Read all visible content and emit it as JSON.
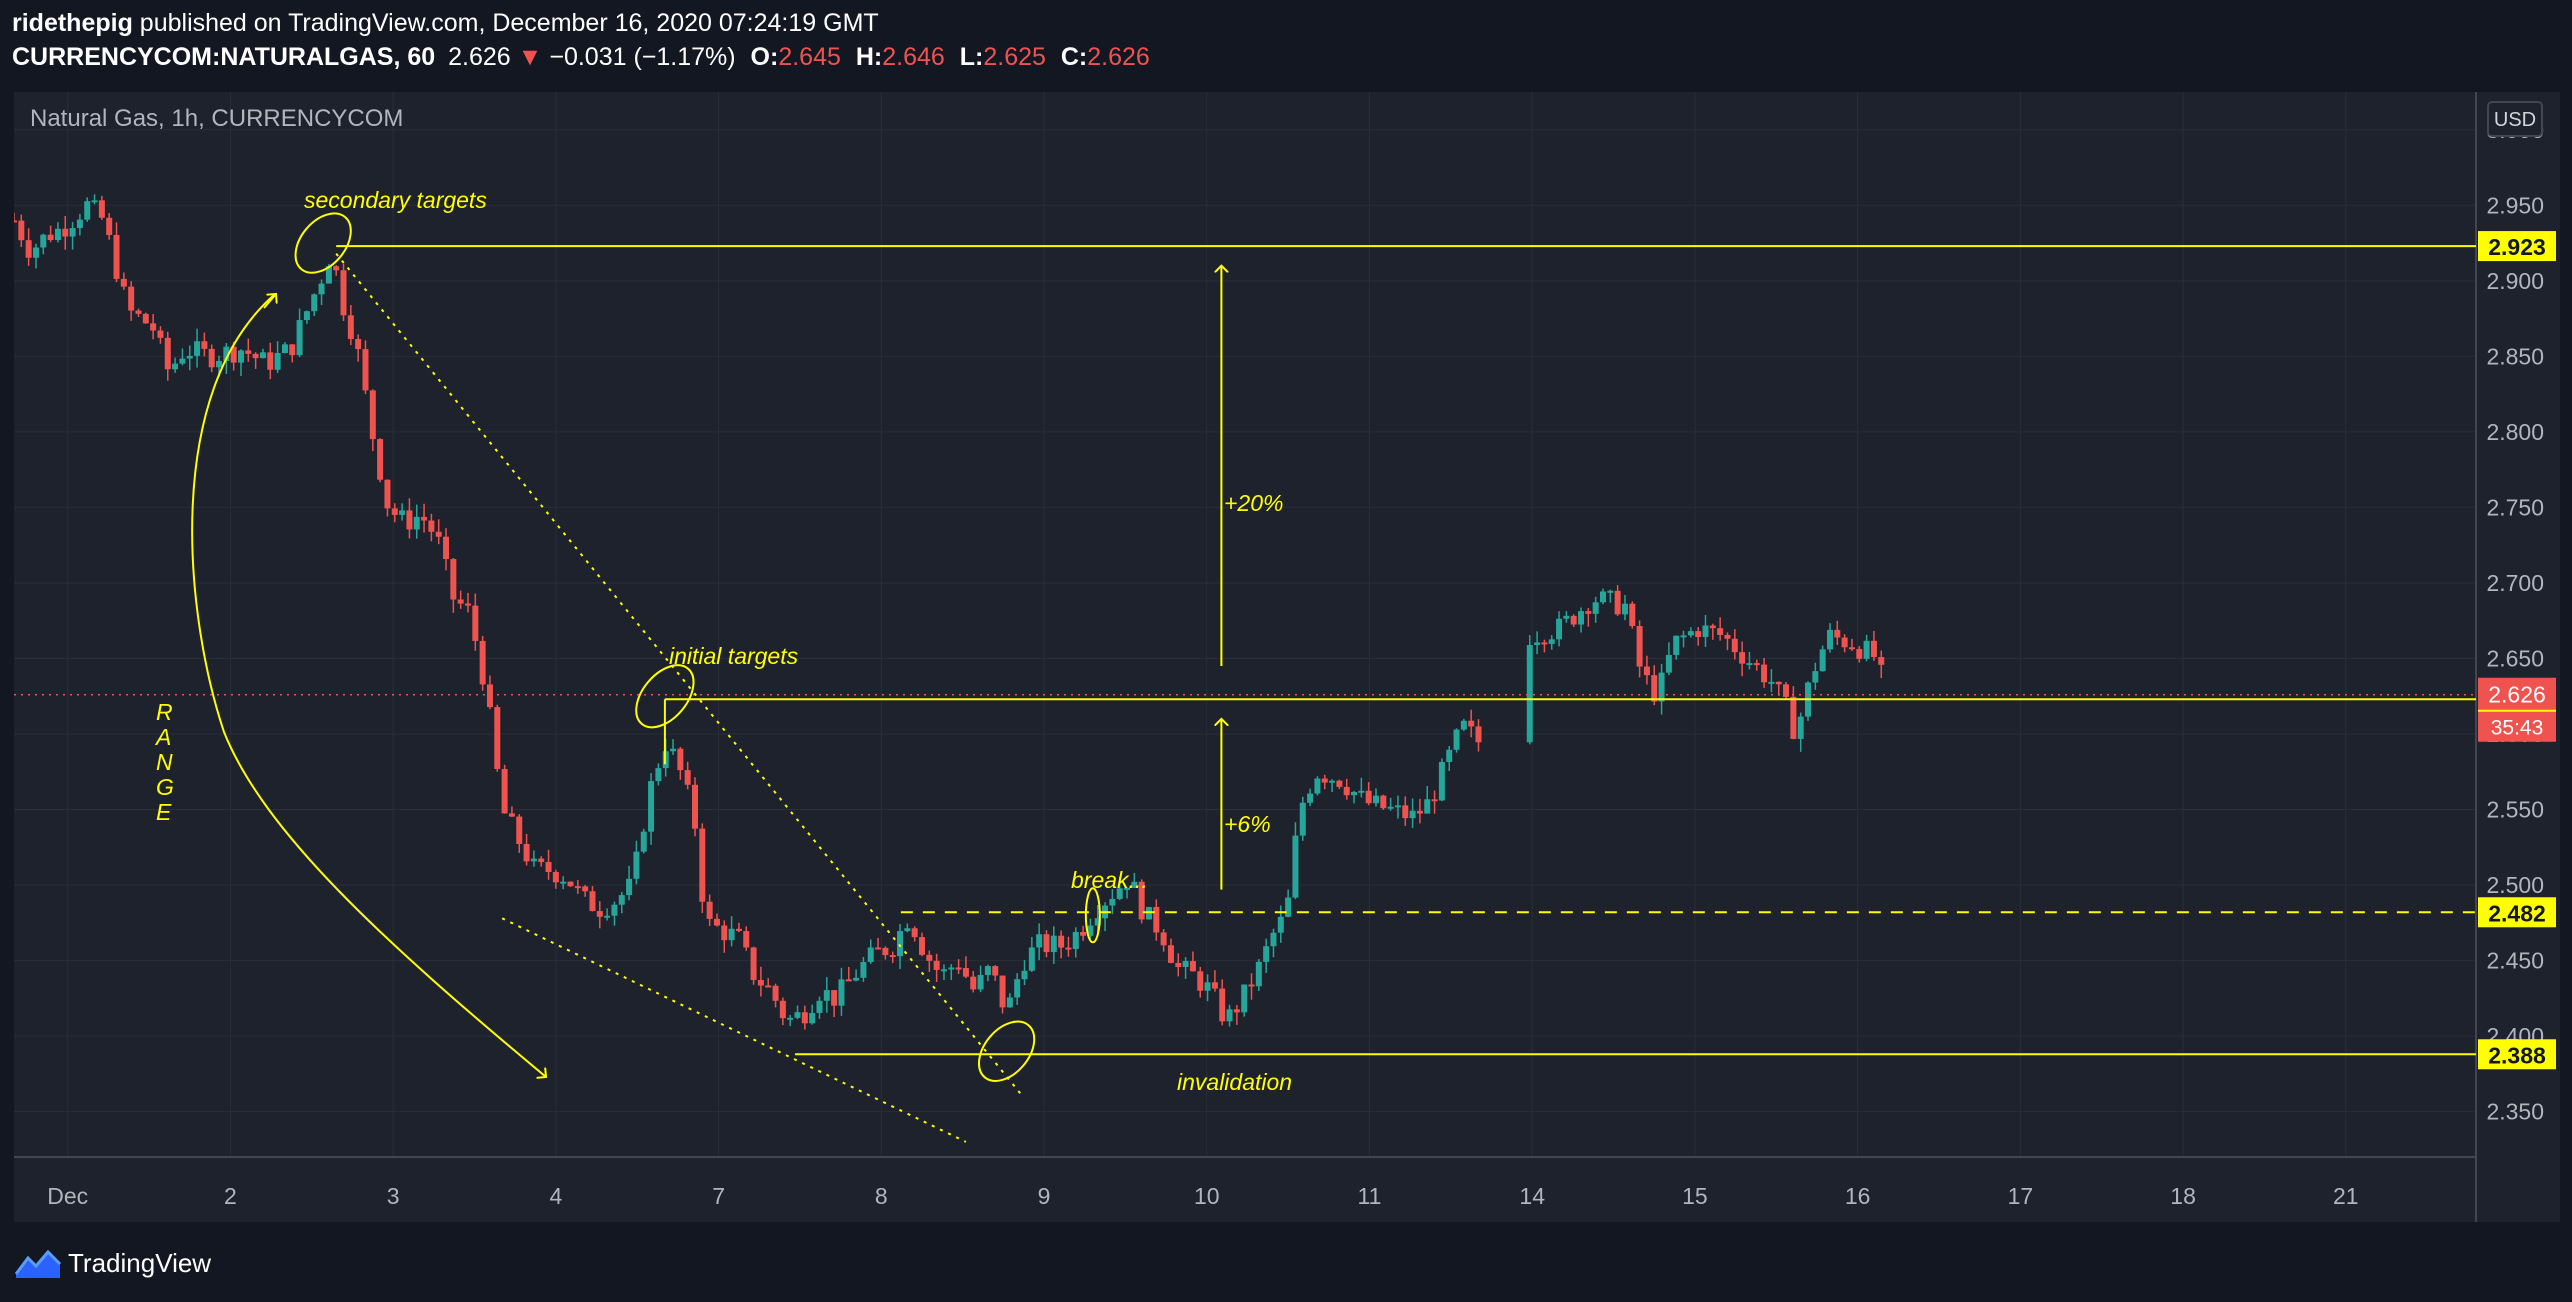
{
  "header": {
    "publisher": "ridethepig",
    "published_text": "published on TradingView.com, December 16, 2020 07:24:19 GMT",
    "symbol": "CURRENCYCOM:NATURALGAS, 60",
    "last": "2.626",
    "change_arrow": "▼",
    "change": "−0.031 (−1.17%)",
    "o_label": "O:",
    "o_value": "2.645",
    "h_label": "H:",
    "h_value": "2.646",
    "l_label": "L:",
    "l_value": "2.625",
    "c_label": "C:",
    "c_value": "2.626"
  },
  "chart_title": "Natural Gas, 1h, CURRENCYCOM",
  "currency_button": "USD",
  "footer": {
    "brand": "TradingView"
  },
  "colors": {
    "background": "#131722",
    "panel": "#1e222d",
    "grid": "#2a2e39",
    "up": "#26a69a",
    "down": "#ef5350",
    "annotation": "#ffff00",
    "text": "#d1d4dc"
  },
  "chart_data": {
    "type": "candlestick",
    "ylim": [
      2.32,
      3.025
    ],
    "y_ticks": [
      "2.350",
      "2.400",
      "2.450",
      "2.500",
      "2.550",
      "2.600",
      "2.650",
      "2.700",
      "2.750",
      "2.800",
      "2.850",
      "2.900",
      "2.950",
      "3.000"
    ],
    "x_ticks": [
      {
        "label": "Dec",
        "x": 0.33
      },
      {
        "label": "2",
        "x": 1.33
      },
      {
        "label": "3",
        "x": 2.33
      },
      {
        "label": "4",
        "x": 3.33
      },
      {
        "label": "7",
        "x": 4.33
      },
      {
        "label": "8",
        "x": 5.33
      },
      {
        "label": "9",
        "x": 6.33
      },
      {
        "label": "10",
        "x": 7.33
      },
      {
        "label": "11",
        "x": 8.33
      },
      {
        "label": "14",
        "x": 9.33
      },
      {
        "label": "15",
        "x": 10.33
      },
      {
        "label": "16",
        "x": 11.33
      },
      {
        "label": "17",
        "x": 12.33
      },
      {
        "label": "18",
        "x": 13.33
      },
      {
        "label": "21",
        "x": 14.33
      }
    ],
    "x_range": [
      0,
      15.13
    ],
    "x_unit": "trading days from start of Dec 1 session",
    "current_price": 2.626,
    "countdown": "35:43",
    "price_path": [
      [
        0.0,
        2.94
      ],
      [
        0.1,
        2.92
      ],
      [
        0.2,
        2.93
      ],
      [
        0.3,
        2.935
      ],
      [
        0.45,
        2.95
      ],
      [
        0.55,
        2.94
      ],
      [
        0.7,
        2.88
      ],
      [
        0.85,
        2.87
      ],
      [
        0.95,
        2.84
      ],
      [
        1.05,
        2.855
      ],
      [
        1.2,
        2.85
      ],
      [
        1.4,
        2.855
      ],
      [
        1.55,
        2.845
      ],
      [
        1.7,
        2.855
      ],
      [
        1.8,
        2.88
      ],
      [
        1.9,
        2.905
      ],
      [
        1.95,
        2.92
      ],
      [
        2.02,
        2.885
      ],
      [
        2.1,
        2.86
      ],
      [
        2.2,
        2.8
      ],
      [
        2.3,
        2.75
      ],
      [
        2.4,
        2.74
      ],
      [
        2.5,
        2.745
      ],
      [
        2.6,
        2.73
      ],
      [
        2.7,
        2.69
      ],
      [
        2.8,
        2.68
      ],
      [
        2.9,
        2.63
      ],
      [
        3.0,
        2.55
      ],
      [
        3.1,
        2.53
      ],
      [
        3.2,
        2.51
      ],
      [
        3.3,
        2.51
      ],
      [
        3.4,
        2.505
      ],
      [
        3.5,
        2.49
      ],
      [
        3.6,
        2.485
      ],
      [
        3.7,
        2.49
      ],
      [
        3.8,
        2.5
      ],
      [
        3.9,
        2.56
      ],
      [
        4.0,
        2.595
      ],
      [
        4.08,
        2.58
      ],
      [
        4.18,
        2.545
      ],
      [
        4.25,
        2.475
      ],
      [
        4.35,
        2.47
      ],
      [
        4.45,
        2.465
      ],
      [
        4.55,
        2.44
      ],
      [
        4.65,
        2.43
      ],
      [
        4.75,
        2.41
      ],
      [
        4.85,
        2.415
      ],
      [
        4.95,
        2.43
      ],
      [
        5.05,
        2.425
      ],
      [
        5.2,
        2.445
      ],
      [
        5.3,
        2.455
      ],
      [
        5.4,
        2.46
      ],
      [
        5.5,
        2.48
      ],
      [
        5.6,
        2.455
      ],
      [
        5.7,
        2.44
      ],
      [
        5.8,
        2.45
      ],
      [
        5.9,
        2.43
      ],
      [
        6.0,
        2.445
      ],
      [
        6.1,
        2.415
      ],
      [
        6.2,
        2.45
      ],
      [
        6.3,
        2.46
      ],
      [
        6.45,
        2.46
      ],
      [
        6.55,
        2.47
      ],
      [
        6.65,
        2.485
      ],
      [
        6.75,
        2.495
      ],
      [
        6.85,
        2.505
      ],
      [
        6.95,
        2.48
      ],
      [
        7.05,
        2.47
      ],
      [
        7.15,
        2.445
      ],
      [
        7.25,
        2.44
      ],
      [
        7.35,
        2.43
      ],
      [
        7.45,
        2.41
      ],
      [
        7.55,
        2.425
      ],
      [
        7.65,
        2.445
      ],
      [
        7.75,
        2.47
      ],
      [
        7.82,
        2.48
      ],
      [
        7.9,
        2.55
      ],
      [
        8.0,
        2.575
      ],
      [
        8.15,
        2.57
      ],
      [
        8.3,
        2.555
      ],
      [
        8.45,
        2.55
      ],
      [
        8.6,
        2.545
      ],
      [
        8.7,
        2.555
      ],
      [
        8.8,
        2.58
      ],
      [
        8.9,
        2.605
      ],
      [
        9.0,
        2.595
      ],
      [
        9.1,
        2.59
      ],
      [
        9.2,
        2.595
      ],
      [
        9.3,
        2.665
      ],
      [
        9.5,
        2.67
      ],
      [
        9.7,
        2.69
      ],
      [
        9.9,
        2.685
      ],
      [
        10.0,
        2.64
      ],
      [
        10.1,
        2.625
      ],
      [
        10.2,
        2.66
      ],
      [
        10.35,
        2.67
      ],
      [
        10.5,
        2.665
      ],
      [
        10.6,
        2.655
      ],
      [
        10.7,
        2.645
      ],
      [
        10.8,
        2.635
      ],
      [
        10.9,
        2.615
      ],
      [
        10.95,
        2.6
      ],
      [
        11.05,
        2.64
      ],
      [
        11.15,
        2.665
      ],
      [
        11.3,
        2.66
      ],
      [
        11.45,
        2.65
      ],
      [
        11.5,
        2.626
      ]
    ],
    "levels": [
      {
        "price": 2.923,
        "label": "2.923",
        "style": "solid"
      },
      {
        "price": 2.623,
        "label": "2.623",
        "style": "solid"
      },
      {
        "price": 2.482,
        "label": "2.482",
        "style": "dashed"
      },
      {
        "price": 2.388,
        "label": "2.388",
        "style": "solid"
      }
    ],
    "annotations": {
      "secondary_targets": "secondary targets",
      "initial_targets": "initial targets",
      "range_letters": [
        "R",
        "A",
        "N",
        "G",
        "E"
      ],
      "plus20": "+20%",
      "plus6": "+6%",
      "break": "break...",
      "invalidation": "invalidation"
    }
  }
}
